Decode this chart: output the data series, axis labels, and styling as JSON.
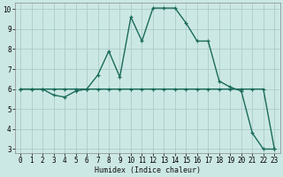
{
  "xlabel": "Humidex (Indice chaleur)",
  "bg_color": "#cce8e4",
  "grid_color": "#aaccca",
  "line_color": "#1a6b5a",
  "xlim": [
    -0.5,
    23.5
  ],
  "ylim": [
    2.8,
    10.3
  ],
  "xticks": [
    0,
    1,
    2,
    3,
    4,
    5,
    6,
    7,
    8,
    9,
    10,
    11,
    12,
    13,
    14,
    15,
    16,
    17,
    18,
    19,
    20,
    21,
    22,
    23
  ],
  "yticks": [
    3,
    4,
    5,
    6,
    7,
    8,
    9,
    10
  ],
  "curve1_x": [
    0,
    1,
    2,
    3,
    4,
    5,
    6,
    7,
    8,
    9,
    10,
    11,
    12,
    13,
    14,
    15,
    16,
    17,
    18,
    19,
    20,
    21,
    22,
    23
  ],
  "curve1_y": [
    6.0,
    6.0,
    6.0,
    5.7,
    5.6,
    5.9,
    6.0,
    6.7,
    7.9,
    6.6,
    9.6,
    8.4,
    10.05,
    10.05,
    10.05,
    9.3,
    8.4,
    8.4,
    6.4,
    6.1,
    5.9,
    3.8,
    3.0,
    3.0
  ],
  "curve2_x": [
    0,
    1,
    2,
    3,
    4,
    5,
    6,
    7,
    8,
    9,
    10,
    11,
    12,
    13,
    14,
    15,
    16,
    17,
    18,
    19,
    20,
    21,
    22,
    23
  ],
  "curve2_y": [
    6.0,
    6.0,
    6.0,
    6.0,
    6.0,
    6.0,
    6.0,
    6.0,
    6.0,
    6.0,
    6.0,
    6.0,
    6.0,
    6.0,
    6.0,
    6.0,
    6.0,
    6.0,
    6.0,
    6.0,
    6.0,
    6.0,
    6.0,
    3.0
  ]
}
